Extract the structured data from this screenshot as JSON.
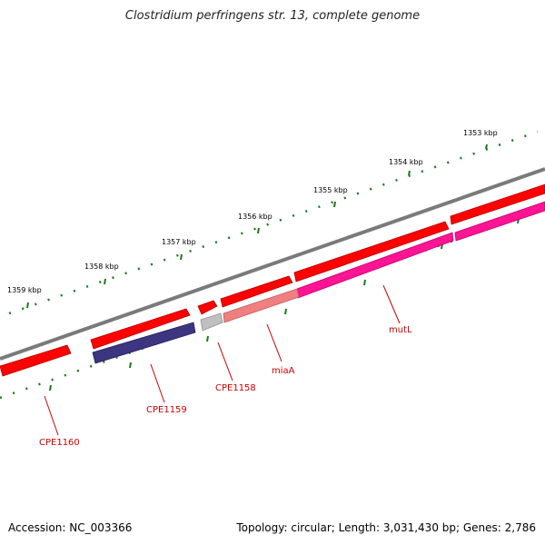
{
  "title": "Clostridium perfringens str. 13, complete genome",
  "footer": {
    "accession": "Accession: NC_003366",
    "topology": "Topology: circular; Length: 3,031,430 bp; Genes: 2,786"
  },
  "ticks": [
    "1353 kbp",
    "1354 kbp",
    "1355 kbp",
    "1356 kbp",
    "1357 kbp",
    "1358 kbp",
    "1359 kbp"
  ],
  "genes": [
    "mutL",
    "miaA",
    "CPE1158",
    "CPE1159",
    "CPE1160"
  ],
  "colors": {
    "backbone": "#808080",
    "gene_red": "#ff0000",
    "gene_pink": "#ff1493",
    "gene_salmon": "#f08080",
    "gene_navy": "#3d3580",
    "gene_gray": "#c0c0c0",
    "tick_green": "#1a7a1a",
    "label_red": "#cc0000"
  }
}
